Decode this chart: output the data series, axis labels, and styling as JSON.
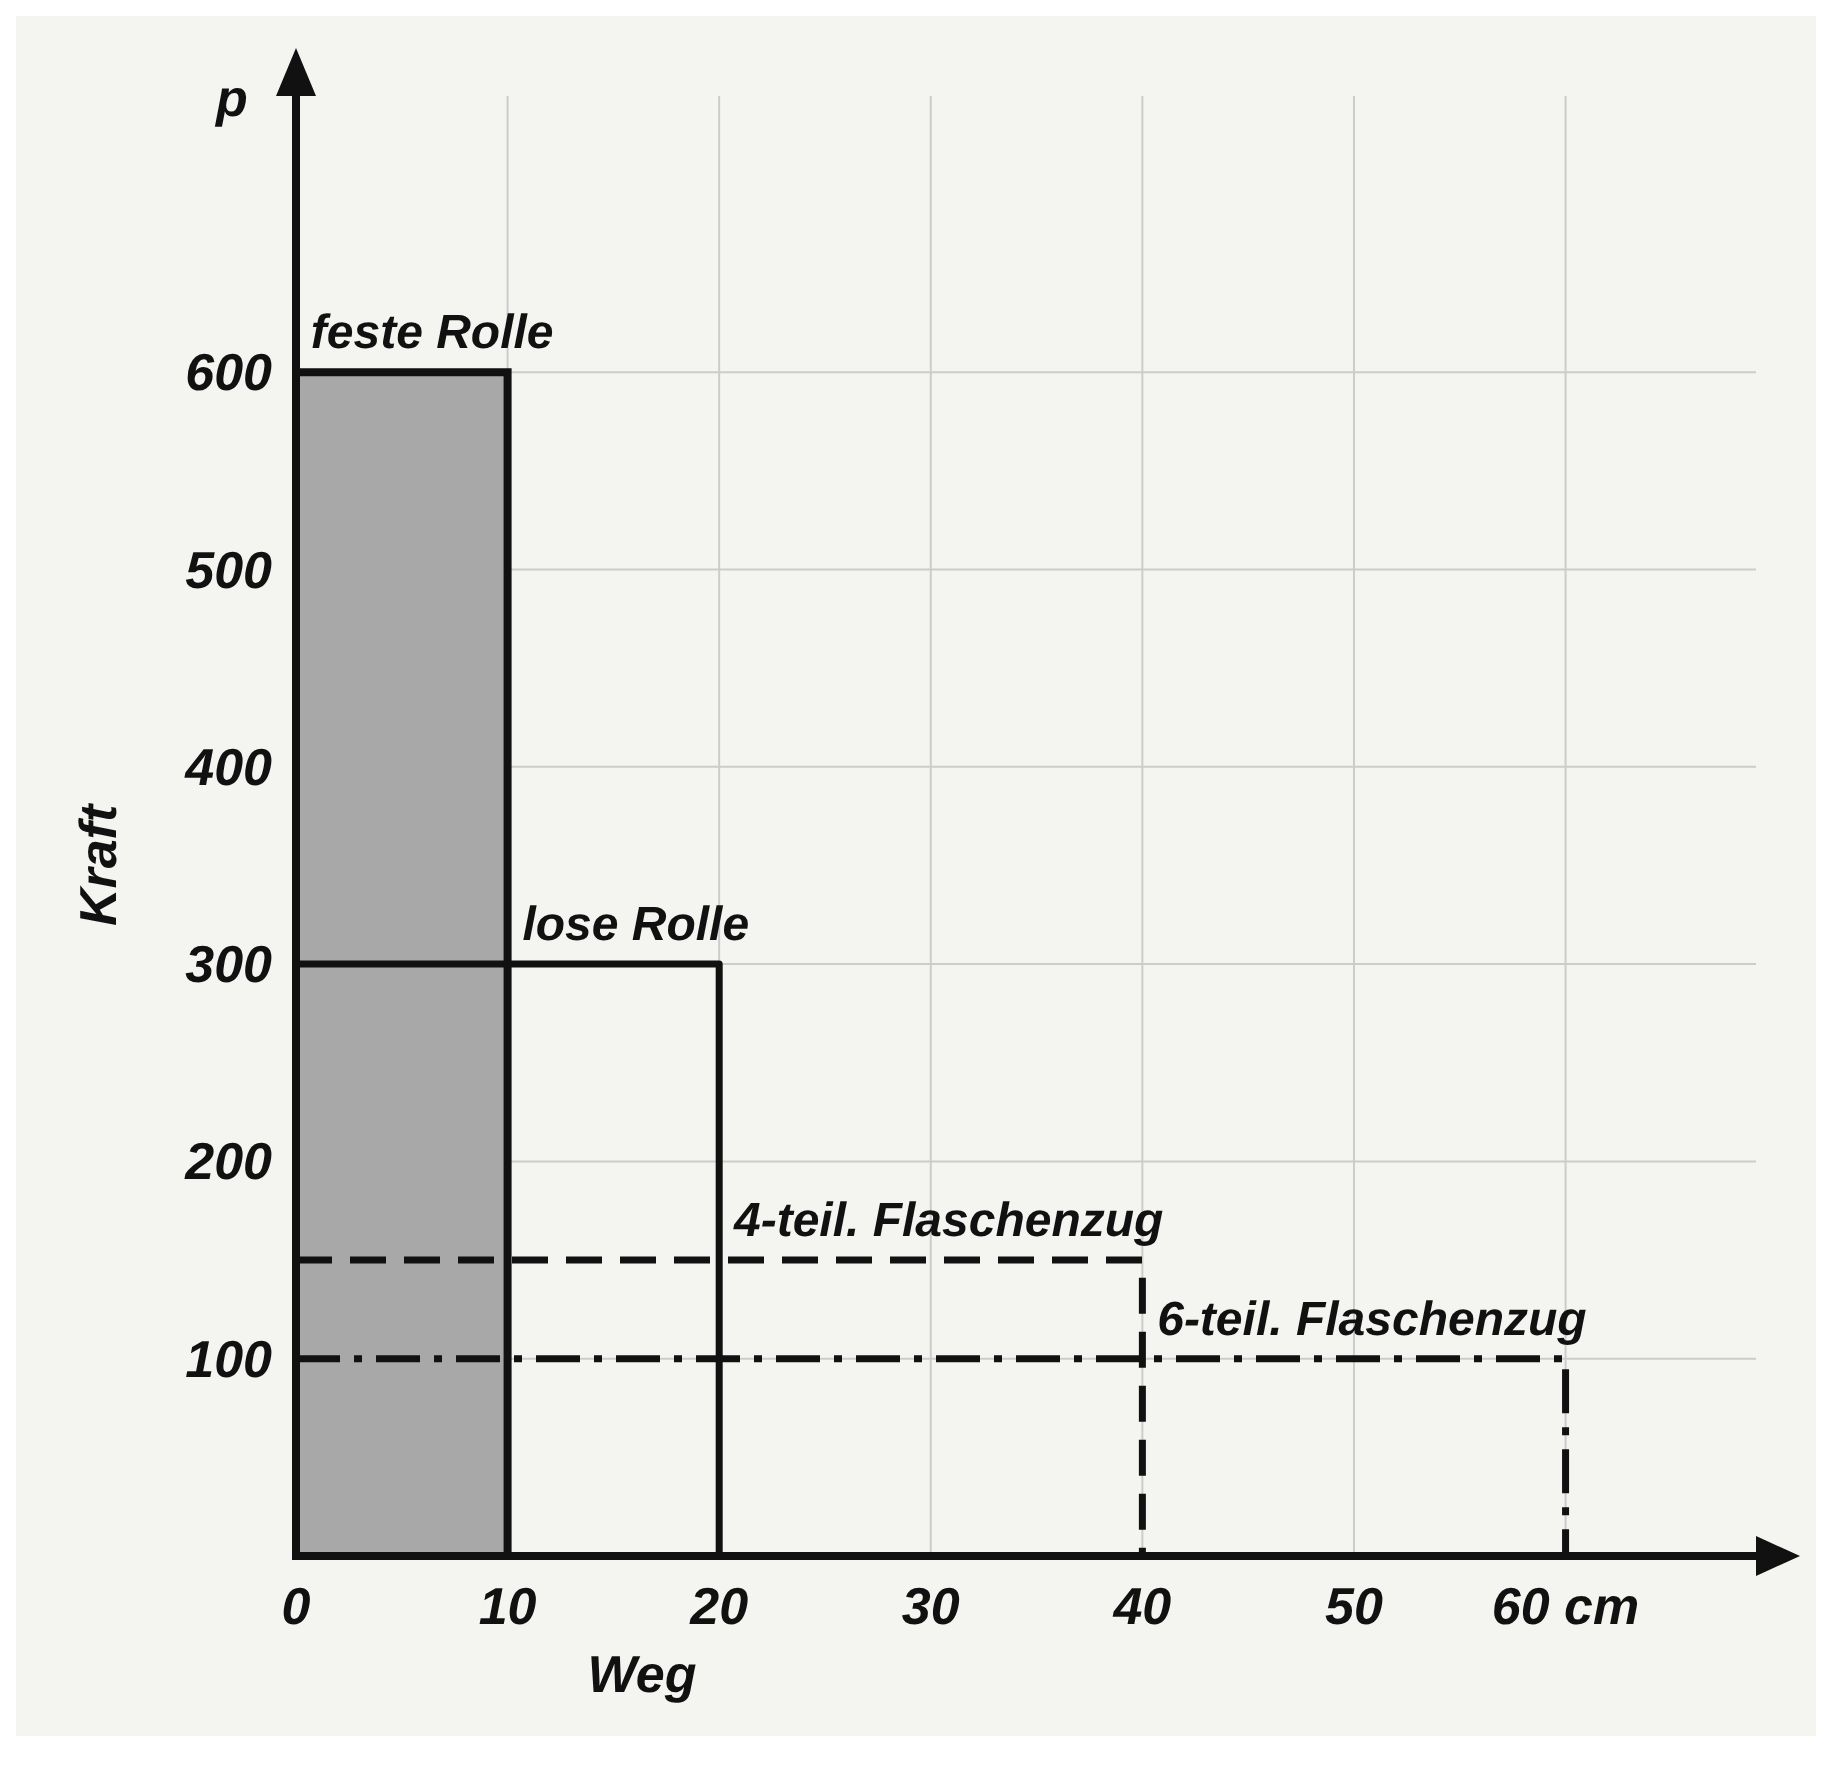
{
  "chart_data": {
    "type": "line",
    "xlabel": "Weg",
    "ylabel": "Kraft",
    "annotations": [
      "p"
    ],
    "xlim": [
      0,
      69
    ],
    "ylim": [
      0,
      740
    ],
    "xticks": [
      0,
      10,
      20,
      30,
      40,
      50,
      {
        "value": 60,
        "label": "60 cm"
      }
    ],
    "yticks": [
      100,
      200,
      300,
      400,
      500,
      600
    ],
    "grid": true,
    "series": [
      {
        "name": "feste Rolle",
        "type": "area",
        "color": "#a8a8a8",
        "x": [
          0,
          10,
          10
        ],
        "values": [
          600,
          600,
          0
        ]
      },
      {
        "name": "lose Rolle",
        "color": "#111111",
        "line_style": "solid",
        "x": [
          0,
          20,
          20
        ],
        "values": [
          300,
          300,
          0
        ]
      },
      {
        "name": "4-teil. Flaschenzug",
        "color": "#111111",
        "line_style": "dashed",
        "x": [
          0,
          40,
          40
        ],
        "values": [
          150,
          150,
          0
        ]
      },
      {
        "name": "6-teil. Flaschenzug",
        "color": "#111111",
        "line_style": "dashdot",
        "x": [
          0,
          60,
          60
        ],
        "values": [
          100,
          100,
          0
        ]
      }
    ]
  }
}
